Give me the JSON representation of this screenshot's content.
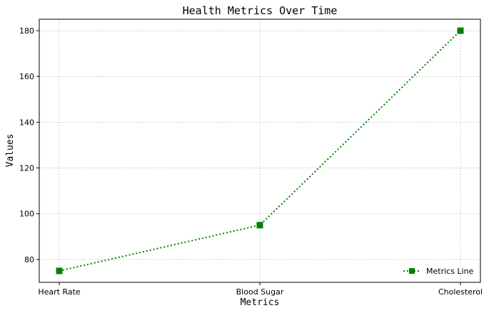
{
  "chart_data": {
    "type": "line",
    "title": "Health Metrics Over Time",
    "xlabel": "Metrics",
    "ylabel": "Values",
    "categories": [
      "Heart Rate",
      "Blood Sugar",
      "Cholesterol"
    ],
    "series": [
      {
        "name": "Metrics Line",
        "values": [
          75,
          95,
          180
        ],
        "color": "#008000",
        "line_style": "dotted",
        "marker": "square"
      }
    ],
    "ylim": [
      70,
      185
    ],
    "yticks": [
      80,
      100,
      120,
      140,
      160,
      180
    ],
    "grid": true,
    "legend_position": "bottom-right"
  }
}
